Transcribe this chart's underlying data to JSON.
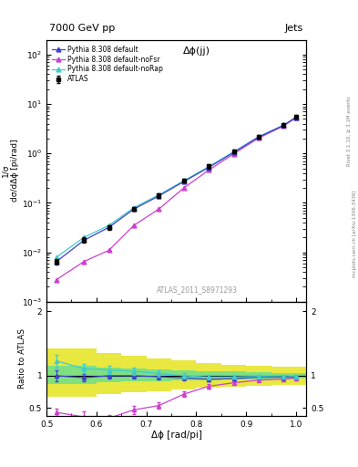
{
  "title_left": "7000 GeV pp",
  "title_right": "Jets",
  "plot_title": "Δϕ(jj)",
  "xlabel": "Δϕ [rad/pi]",
  "ylabel_main": "1/σ;dσ/dΔϕ [pi/rad]",
  "ylabel_ratio": "Ratio to ATLAS",
  "right_label": "Rivet 3.1.10, ≥ 3.1M events",
  "right_label2": "mcplots.cern.ch [arXiv:1306.3436]",
  "watermark": "ATLAS_2011_S8971293",
  "atlas_x": [
    0.52,
    0.575,
    0.625,
    0.675,
    0.725,
    0.775,
    0.825,
    0.875,
    0.925,
    0.975,
    1.0
  ],
  "atlas_y": [
    0.0065,
    0.018,
    0.032,
    0.075,
    0.14,
    0.28,
    0.55,
    1.1,
    2.2,
    3.8,
    5.5
  ],
  "atlas_yerr": [
    0.0008,
    0.002,
    0.003,
    0.007,
    0.014,
    0.025,
    0.05,
    0.1,
    0.2,
    0.35,
    0.5
  ],
  "default_x": [
    0.52,
    0.575,
    0.625,
    0.675,
    0.725,
    0.775,
    0.825,
    0.875,
    0.925,
    0.975,
    1.0
  ],
  "default_y": [
    0.0065,
    0.0175,
    0.032,
    0.075,
    0.138,
    0.27,
    0.52,
    1.05,
    2.15,
    3.7,
    5.4
  ],
  "noFsr_x": [
    0.52,
    0.575,
    0.625,
    0.675,
    0.725,
    0.775,
    0.825,
    0.875,
    0.925,
    0.975,
    1.0
  ],
  "noFsr_y": [
    0.0028,
    0.0065,
    0.011,
    0.035,
    0.075,
    0.2,
    0.46,
    0.98,
    2.05,
    3.6,
    5.3
  ],
  "noRap_x": [
    0.52,
    0.575,
    0.625,
    0.675,
    0.725,
    0.775,
    0.825,
    0.875,
    0.925,
    0.975,
    1.0
  ],
  "noRap_y": [
    0.008,
    0.02,
    0.035,
    0.08,
    0.145,
    0.28,
    0.54,
    1.08,
    2.18,
    3.75,
    5.45
  ],
  "ratio_default_y": [
    1.0,
    0.97,
    1.0,
    1.0,
    0.985,
    0.965,
    0.945,
    0.955,
    0.978,
    0.975,
    0.98
  ],
  "ratio_noFsr_y": [
    0.43,
    0.36,
    0.34,
    0.47,
    0.536,
    0.714,
    0.836,
    0.891,
    0.932,
    0.948,
    0.963
  ],
  "ratio_noRap_y": [
    1.23,
    1.11,
    1.09,
    1.07,
    1.035,
    1.0,
    0.98,
    0.982,
    0.99,
    0.986,
    0.99
  ],
  "ratio_default_yerr": [
    0.08,
    0.06,
    0.05,
    0.045,
    0.04,
    0.035,
    0.03,
    0.025,
    0.02,
    0.018,
    0.015
  ],
  "ratio_noFsr_yerr": [
    0.06,
    0.08,
    0.055,
    0.06,
    0.05,
    0.04,
    0.03,
    0.025,
    0.02,
    0.015,
    0.012
  ],
  "ratio_noRap_yerr": [
    0.1,
    0.075,
    0.06,
    0.055,
    0.045,
    0.038,
    0.032,
    0.026,
    0.022,
    0.018,
    0.015
  ],
  "green_band_x": [
    0.5,
    0.55,
    0.6,
    0.65,
    0.7,
    0.75,
    0.8,
    0.85,
    0.9,
    0.95,
    1.02
  ],
  "green_band_lo": [
    0.87,
    0.87,
    0.9,
    0.91,
    0.92,
    0.93,
    0.935,
    0.94,
    0.945,
    0.95,
    0.955
  ],
  "green_band_hi": [
    1.15,
    1.15,
    1.12,
    1.11,
    1.1,
    1.09,
    1.075,
    1.065,
    1.055,
    1.048,
    1.042
  ],
  "yellow_band_lo": [
    0.68,
    0.68,
    0.72,
    0.74,
    0.76,
    0.79,
    0.81,
    0.83,
    0.845,
    0.852,
    0.858
  ],
  "yellow_band_hi": [
    1.42,
    1.42,
    1.35,
    1.31,
    1.27,
    1.24,
    1.2,
    1.17,
    1.155,
    1.145,
    1.138
  ],
  "color_atlas": "#000000",
  "color_default": "#4040cc",
  "color_noFsr": "#cc40cc",
  "color_noRap": "#40cccc",
  "color_green_band": "#80e080",
  "color_yellow_band": "#e8e840",
  "xlim": [
    0.5,
    1.02
  ],
  "ylim_main": [
    0.001,
    200
  ],
  "ylim_ratio": [
    0.38,
    2.15
  ],
  "ratio_yticks": [
    0.5,
    1.0,
    2.0
  ],
  "ratio_yticklabels": [
    "0.5",
    "1",
    "2"
  ]
}
